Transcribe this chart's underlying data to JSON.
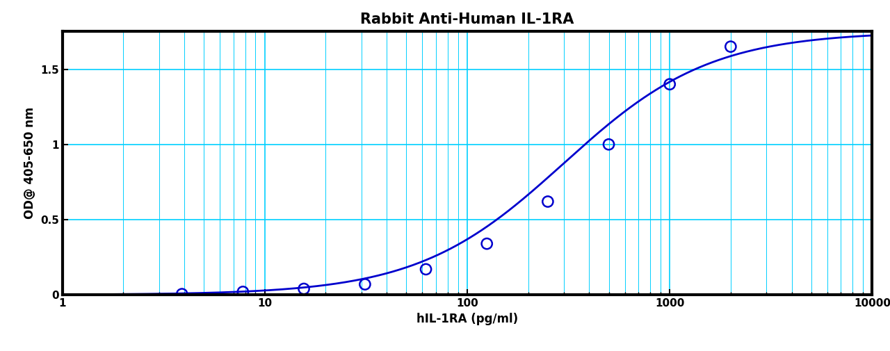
{
  "title": "Rabbit Anti-Human IL-1RA",
  "xlabel": "hIL-1RA (pg/ml)",
  "ylabel": "OD@ 405-650 nm",
  "x_data": [
    3.9,
    7.8,
    15.6,
    31.25,
    62.5,
    125,
    250,
    500,
    1000,
    2000
  ],
  "y_data": [
    0.005,
    0.02,
    0.04,
    0.07,
    0.17,
    0.34,
    0.62,
    1.0,
    1.4,
    1.65
  ],
  "xlim": [
    1,
    10000
  ],
  "ylim": [
    0.0,
    1.75
  ],
  "line_color": "#0000CD",
  "marker_color": "#0000CD",
  "grid_major_color": "#00CFFF",
  "grid_minor_color": "#00CFFF",
  "background_color": "#FFFFFF",
  "title_fontsize": 15,
  "label_fontsize": 12,
  "tick_fontsize": 11,
  "yticks": [
    0,
    0.5,
    1.0,
    1.5
  ],
  "ytick_labels": [
    "0",
    "0.5",
    "1",
    "1.5"
  ],
  "xtick_labels": [
    "1",
    "10",
    "100",
    "1000",
    "10000"
  ],
  "xtick_values": [
    1,
    10,
    100,
    1000,
    10000
  ]
}
